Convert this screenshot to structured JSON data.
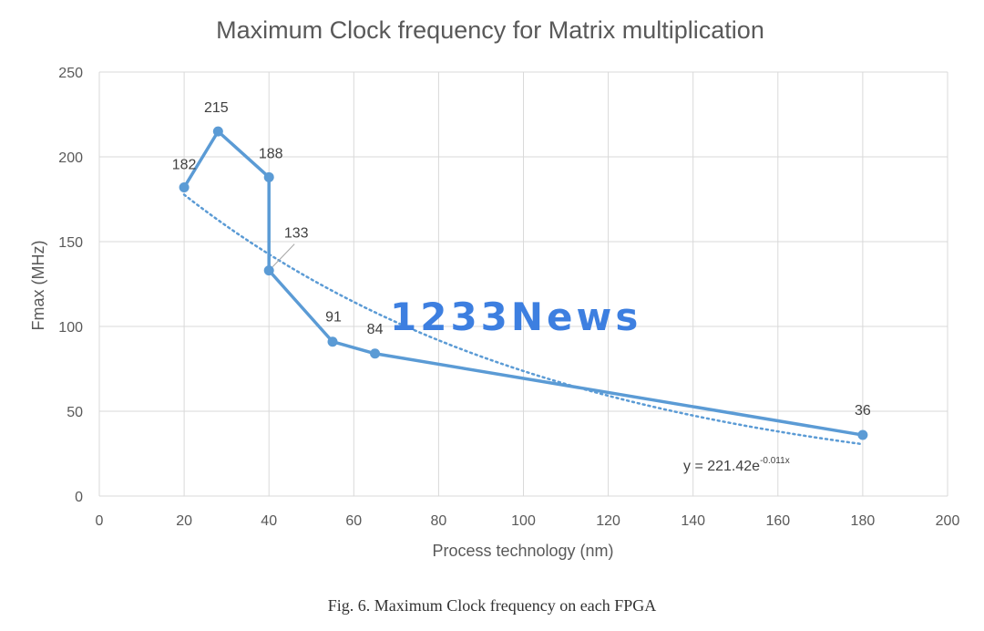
{
  "chart_data": {
    "type": "line",
    "title": "Maximum Clock frequency for Matrix multiplication",
    "xlabel": "Process technology (nm)",
    "ylabel": "Fmax (MHz)",
    "xlim": [
      0,
      200
    ],
    "ylim": [
      0,
      250
    ],
    "xticks": [
      0,
      20,
      40,
      60,
      80,
      100,
      120,
      140,
      160,
      180,
      200
    ],
    "yticks": [
      0,
      50,
      100,
      150,
      200,
      250
    ],
    "grid": true,
    "series": [
      {
        "points": [
          {
            "x": 20,
            "y": 182,
            "label": "182"
          },
          {
            "x": 28,
            "y": 215,
            "label": "215"
          },
          {
            "x": 40,
            "y": 188,
            "label": "188"
          },
          {
            "x": 40,
            "y": 133,
            "label": "133"
          },
          {
            "x": 55,
            "y": 91,
            "label": "91"
          },
          {
            "x": 65,
            "y": 84,
            "label": "84"
          },
          {
            "x": 180,
            "y": 36,
            "label": "36"
          }
        ],
        "color": "#5b9bd5"
      }
    ],
    "trendline": {
      "type": "exponential",
      "a": 221.42,
      "b": -0.011,
      "x_range": [
        20,
        180
      ],
      "equation_base": "y = 221.42e",
      "equation_exponent": "-0.011x",
      "style": "dotted",
      "color": "#5b9bd5"
    }
  },
  "watermark": "1233News",
  "watermark_color": "#3d7fe0",
  "caption": "Fig. 6.  Maximum Clock frequency on each FPGA"
}
